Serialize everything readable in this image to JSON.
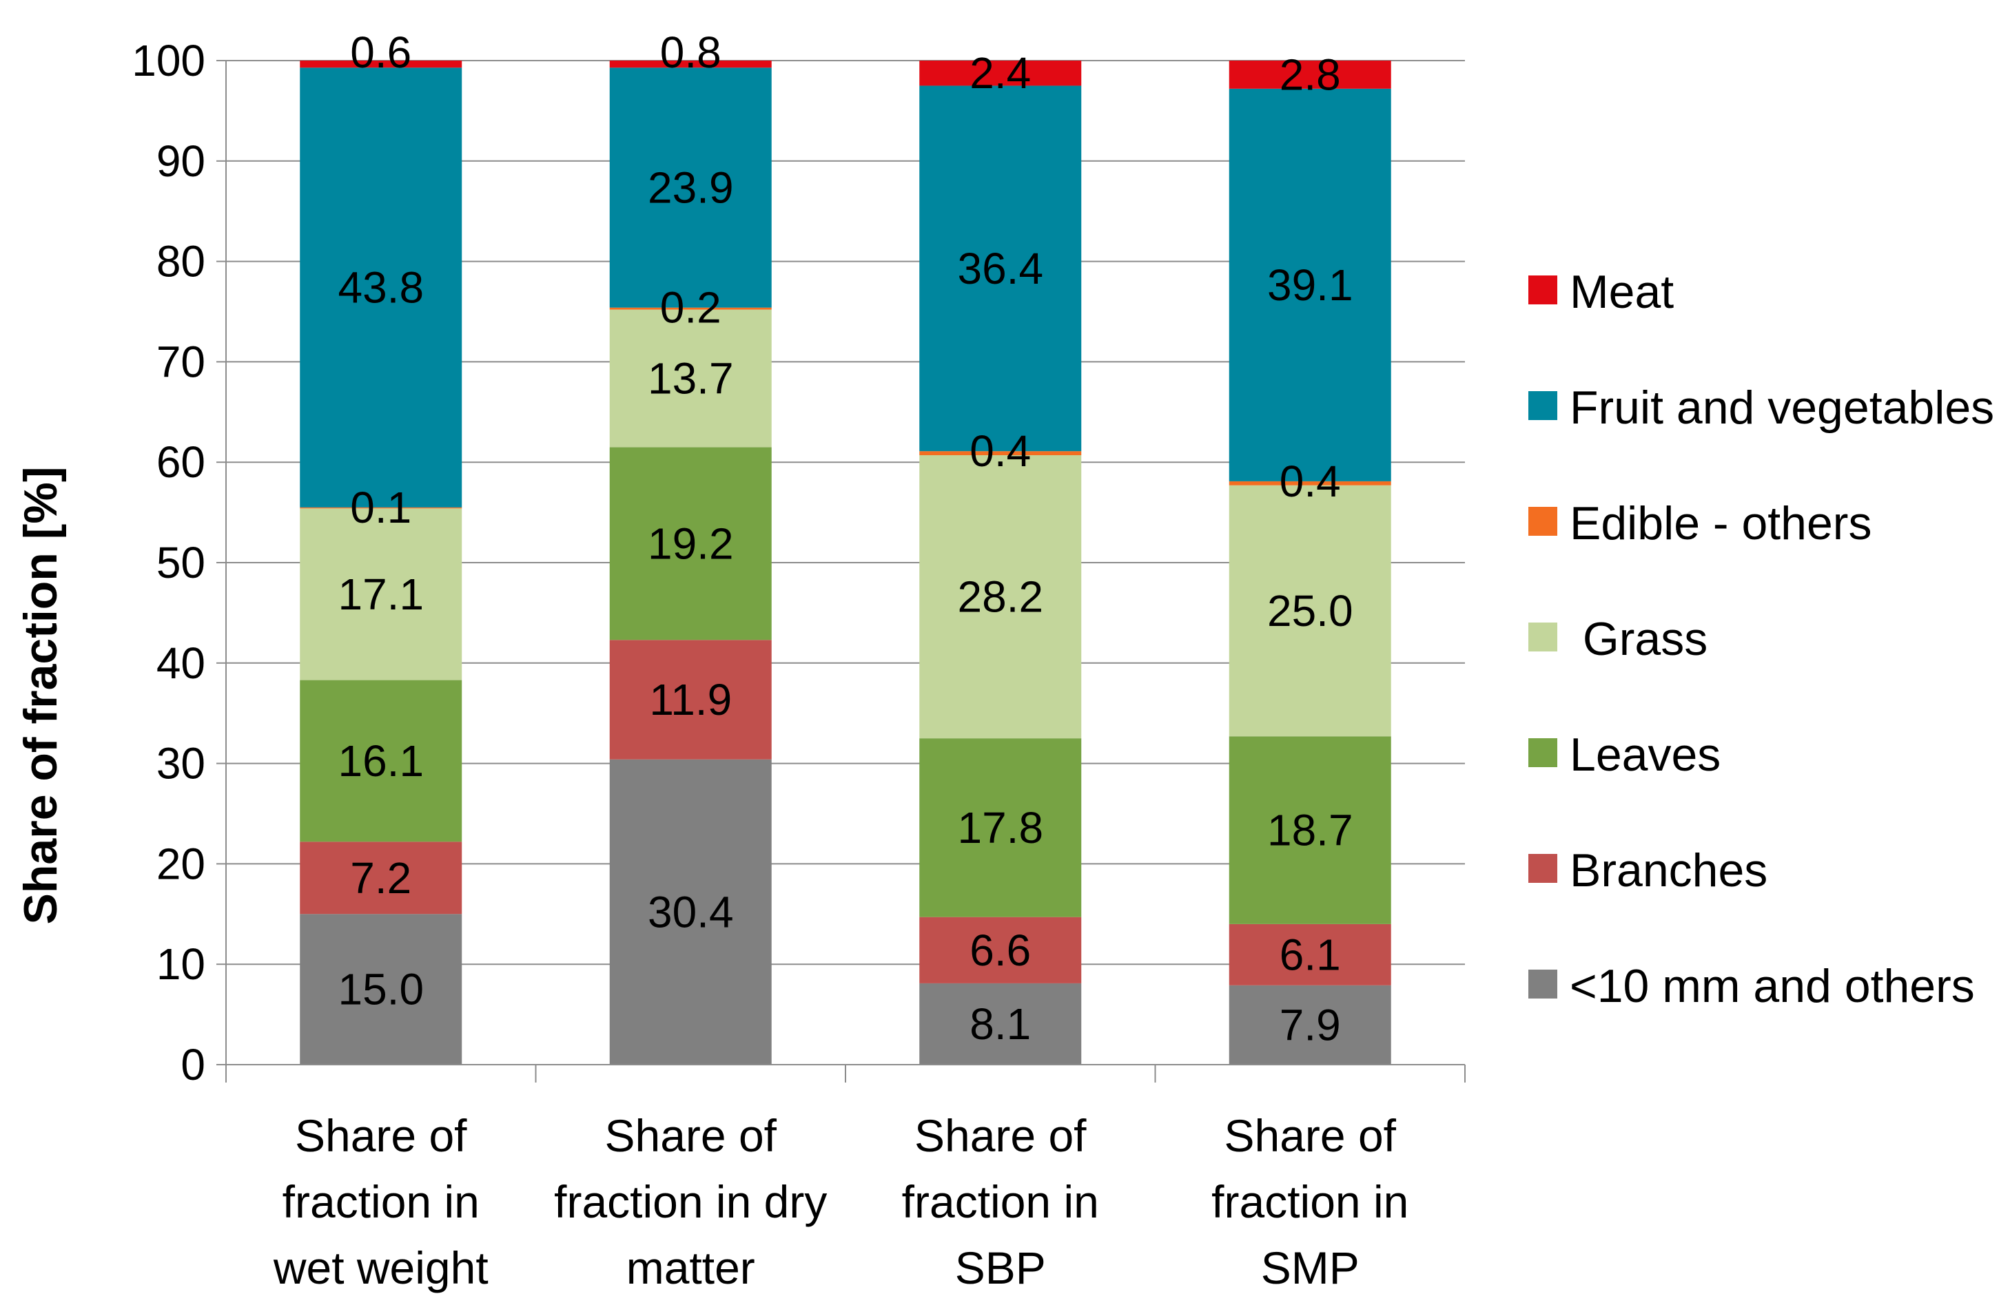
{
  "chart_data": {
    "type": "bar",
    "stacked": true,
    "title": "",
    "xlabel": "",
    "ylabel": "Share  of fraction [%]",
    "ylim": [
      0,
      100
    ],
    "yticks": [
      0,
      10,
      20,
      30,
      40,
      50,
      60,
      70,
      80,
      90,
      100
    ],
    "grid": true,
    "legend_position": "right",
    "categories": [
      [
        "Share of",
        "fraction  in",
        "wet weight"
      ],
      [
        "Share of",
        "fraction  in dry",
        "matter"
      ],
      [
        "Share of",
        "fraction  in",
        "SBP"
      ],
      [
        "Share of",
        "fraction  in",
        "SMP"
      ]
    ],
    "series": [
      {
        "name": "<10 mm and others",
        "color": "#808080",
        "values": [
          15.0,
          30.4,
          8.1,
          7.9
        ],
        "labels": [
          "15.0",
          "30.4",
          "8.1",
          "7.9"
        ]
      },
      {
        "name": "Branches",
        "color": "#C0504D",
        "values": [
          7.2,
          11.9,
          6.6,
          6.1
        ],
        "labels": [
          "7.2",
          "11.9",
          "6.6",
          "6.1"
        ]
      },
      {
        "name": "Leaves",
        "color": "#77A344",
        "values": [
          16.1,
          19.2,
          17.8,
          18.7
        ],
        "labels": [
          "16.1",
          "19.2",
          "17.8",
          "18.7"
        ]
      },
      {
        "name": " Grass",
        "color": "#C3D69B",
        "values": [
          17.1,
          13.7,
          28.2,
          25.0
        ],
        "labels": [
          "17.1",
          "13.7",
          "28.2",
          "25.0"
        ]
      },
      {
        "name": "Edible - others",
        "color": "#F36E21",
        "values": [
          0.1,
          0.2,
          0.4,
          0.4
        ],
        "labels": [
          "0.1",
          "0.2",
          "0.4",
          "0.4"
        ]
      },
      {
        "name": "Fruit and vegetables",
        "color": "#00869E",
        "values": [
          43.8,
          23.9,
          36.4,
          39.1
        ],
        "labels": [
          "43.8",
          "23.9",
          "36.4",
          "39.1"
        ]
      },
      {
        "name": "Meat",
        "color": "#E10A14",
        "values": [
          0.6,
          0.8,
          2.4,
          2.8
        ],
        "labels": [
          "0.6",
          "0.8",
          "2.4",
          "2.8"
        ]
      }
    ]
  }
}
